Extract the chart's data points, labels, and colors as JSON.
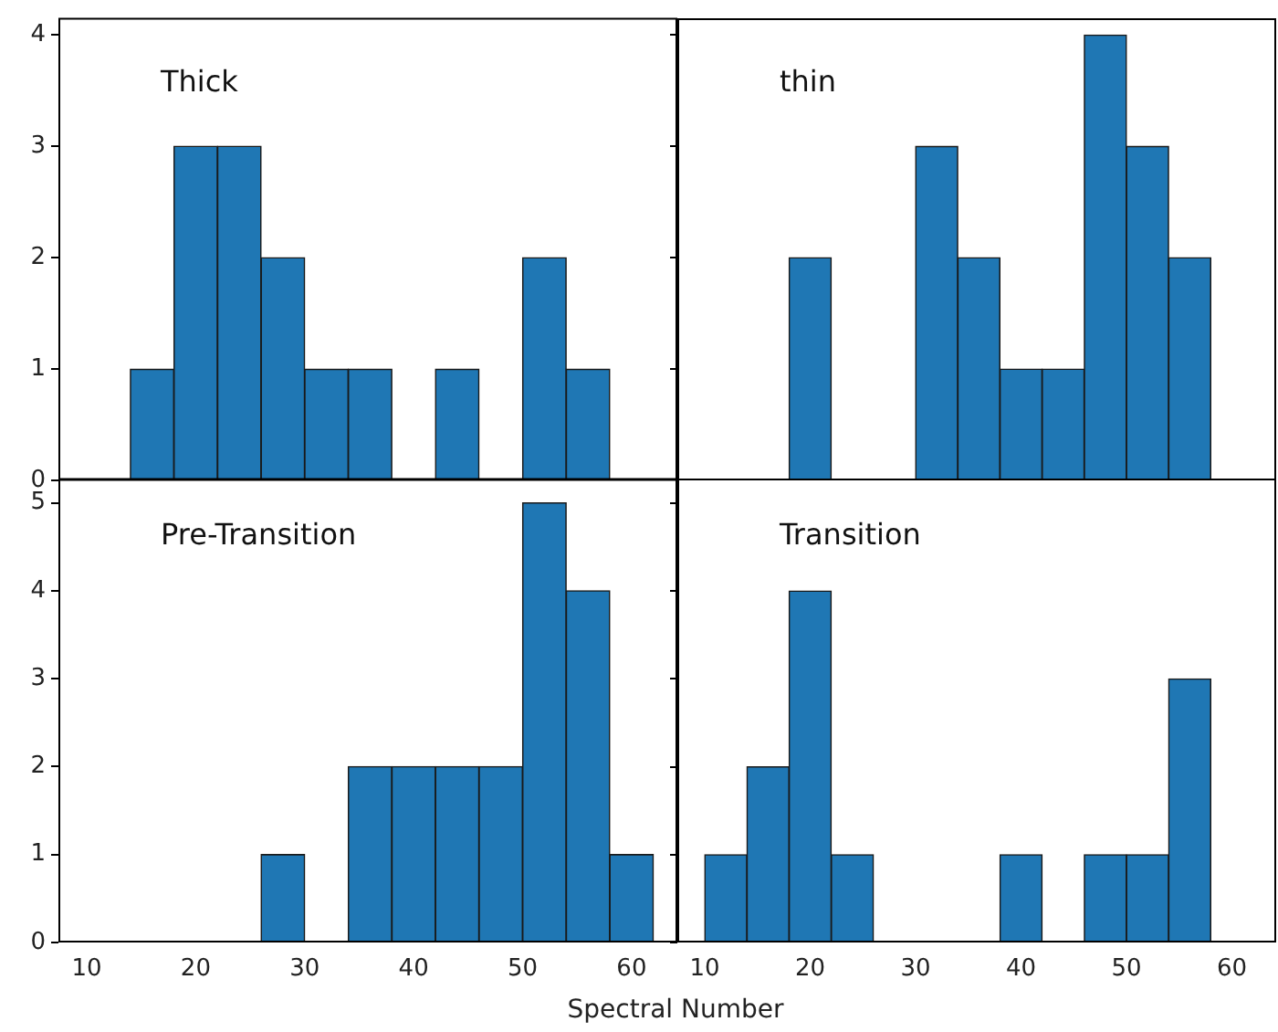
{
  "chart_data": [
    {
      "type": "histogram",
      "title": "Thick",
      "bins": [
        10,
        14,
        18,
        22,
        26,
        30,
        34,
        38,
        42,
        46,
        50,
        54,
        58,
        62
      ],
      "values": [
        0,
        1,
        3,
        3,
        2,
        1,
        1,
        0,
        1,
        0,
        2,
        1,
        0
      ],
      "color": "#1f77b4",
      "xlim": [
        7.4,
        64.2
      ],
      "ylim": [
        0,
        4.15
      ],
      "yticks": [
        0,
        1,
        2,
        3,
        4
      ],
      "xticks": [
        10,
        20,
        30,
        40,
        50,
        60
      ],
      "tick_labels": "y"
    },
    {
      "type": "histogram",
      "title": "thin",
      "bins": [
        10,
        14,
        18,
        22,
        26,
        30,
        34,
        38,
        42,
        46,
        50,
        54,
        58,
        62
      ],
      "values": [
        0,
        0,
        2,
        0,
        0,
        3,
        2,
        1,
        1,
        4,
        3,
        2,
        0
      ],
      "color": "#1f77b4",
      "xlim": [
        7.4,
        64.2
      ],
      "ylim": [
        0,
        4.15
      ],
      "yticks": [
        0,
        1,
        2,
        3,
        4
      ],
      "xticks": [
        10,
        20,
        30,
        40,
        50,
        60
      ],
      "tick_labels": false
    },
    {
      "type": "histogram",
      "title": "Pre-Transition",
      "xlabel": "Spectral Number",
      "bins": [
        10,
        14,
        18,
        22,
        26,
        30,
        34,
        38,
        42,
        46,
        50,
        54,
        58,
        62
      ],
      "values": [
        0,
        0,
        0,
        0,
        1,
        0,
        2,
        2,
        2,
        2,
        5,
        4,
        1
      ],
      "color": "#1f77b4",
      "xlim": [
        7.4,
        64.2
      ],
      "ylim": [
        0,
        5.28
      ],
      "yticks": [
        0,
        1,
        2,
        3,
        4,
        5
      ],
      "xticks": [
        10,
        20,
        30,
        40,
        50,
        60
      ]
    },
    {
      "type": "histogram",
      "title": "Transition",
      "bins": [
        10,
        14,
        18,
        22,
        26,
        30,
        34,
        38,
        42,
        46,
        50,
        54,
        58,
        62
      ],
      "values": [
        1,
        2,
        4,
        1,
        0,
        0,
        0,
        1,
        0,
        1,
        1,
        3,
        0
      ],
      "color": "#1f77b4",
      "xlim": [
        7.4,
        64.2
      ],
      "ylim": [
        0,
        5.28
      ],
      "yticks": [
        0,
        1,
        2,
        3,
        4,
        5
      ],
      "xticks": [
        10,
        20,
        30,
        40,
        50,
        60
      ],
      "tick_labels": "x"
    }
  ]
}
